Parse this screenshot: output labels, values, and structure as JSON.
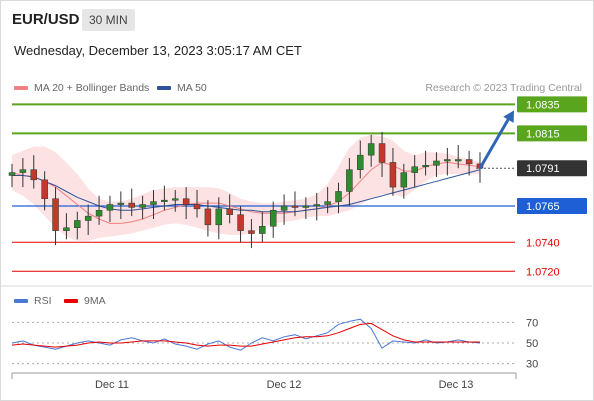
{
  "header": {
    "symbol": "EUR/USD",
    "timeframe": "30 MIN",
    "datetime": "Wednesday, December 13, 2023 3:05:17 AM CET"
  },
  "legend": {
    "items": [
      {
        "label": "MA 20 + Bollinger Bands",
        "color": "#f08080"
      },
      {
        "label": "MA 50",
        "color": "#2f5597"
      }
    ],
    "credit": "Research © 2023 Trading Central"
  },
  "rsi_legend": {
    "items": [
      {
        "label": "RSI",
        "color": "#4a78d6"
      },
      {
        "label": "9MA",
        "color": "#e60000"
      }
    ]
  },
  "chart_data": [
    {
      "type": "line",
      "title": "EUR/USD",
      "subtitle": "30 MIN",
      "ylim": [
        1.0714,
        1.0838
      ],
      "x_ticks": [
        "Dec 11",
        "Dec 12",
        "Dec 13"
      ],
      "levels": [
        {
          "value": 1.0835,
          "label": "1.0835",
          "kind": "resistance",
          "color": "#5aa51e",
          "label_bg": "#5aa51e"
        },
        {
          "value": 1.0815,
          "label": "1.0815",
          "kind": "resistance",
          "color": "#5aa51e",
          "label_bg": "#5aa51e"
        },
        {
          "value": 1.0791,
          "label": "1.0791",
          "kind": "current",
          "color": "#333333",
          "label_bg": "#333333"
        },
        {
          "value": 1.0765,
          "label": "1.0765",
          "kind": "pivot",
          "color": "#1e5fd6",
          "label_bg": "#1e5fd6"
        },
        {
          "value": 1.074,
          "label": "1.0740",
          "kind": "support",
          "color": "#e60000",
          "label_bg": ""
        },
        {
          "value": 1.072,
          "label": "1.0720",
          "kind": "support",
          "color": "#e60000",
          "label_bg": ""
        }
      ],
      "projection_target": 1.0835,
      "series": [
        {
          "name": "MA 20 + Bollinger Bands",
          "values": [
            1.0788,
            1.0786,
            1.0785,
            1.0782,
            1.0778,
            1.0772,
            1.0766,
            1.076,
            1.0756,
            1.0753,
            1.0753,
            1.0754,
            1.0756,
            1.0759,
            1.0762,
            1.0764,
            1.0766,
            1.0767,
            1.0767,
            1.0767,
            1.0765,
            1.0763,
            1.0761,
            1.076,
            1.076,
            1.076,
            1.0761,
            1.0762,
            1.0763,
            1.0765,
            1.0768,
            1.0774,
            1.0782,
            1.079,
            1.0795,
            1.0793,
            1.0789,
            1.0789,
            1.0792,
            1.0794,
            1.0795,
            1.0794,
            1.0793,
            1.0792
          ]
        },
        {
          "name": "MA 50",
          "values": [
            1.0786,
            1.0786,
            1.0785,
            1.0782,
            1.0779,
            1.0775,
            1.0771,
            1.0768,
            1.0765,
            1.0763,
            1.0762,
            1.0762,
            1.0763,
            1.0764,
            1.0765,
            1.0766,
            1.0766,
            1.0766,
            1.0765,
            1.0764,
            1.0763,
            1.0762,
            1.0762,
            1.0761,
            1.0761,
            1.0761,
            1.0761,
            1.0762,
            1.0763,
            1.0764,
            1.0765,
            1.0766,
            1.0768,
            1.077,
            1.0772,
            1.0774,
            1.0776,
            1.0778,
            1.078,
            1.0782,
            1.0784,
            1.0786,
            1.0788,
            1.079
          ]
        },
        {
          "name": "Bollinger upper",
          "values": [
            1.08,
            1.0803,
            1.0806,
            1.0806,
            1.0802,
            1.0795,
            1.0787,
            1.0777,
            1.077,
            1.0768,
            1.0768,
            1.077,
            1.0773,
            1.0776,
            1.0777,
            1.0778,
            1.0778,
            1.0778,
            1.0778,
            1.0777,
            1.0774,
            1.077,
            1.0768,
            1.0767,
            1.0767,
            1.0768,
            1.0769,
            1.077,
            1.0773,
            1.078,
            1.0792,
            1.0805,
            1.0812,
            1.0814,
            1.0813,
            1.081,
            1.0803,
            1.08,
            1.0802,
            1.0802,
            1.0801,
            1.0799,
            1.0797,
            1.0795
          ]
        },
        {
          "name": "Bollinger lower",
          "values": [
            1.0776,
            1.0772,
            1.0766,
            1.0758,
            1.075,
            1.0744,
            1.0741,
            1.0741,
            1.0743,
            1.0744,
            1.0745,
            1.0746,
            1.0748,
            1.075,
            1.0752,
            1.0753,
            1.0752,
            1.075,
            1.0748,
            1.0746,
            1.0745,
            1.0745,
            1.0746,
            1.075,
            1.0753,
            1.0754,
            1.0755,
            1.0757,
            1.0758,
            1.0758,
            1.076,
            1.0762,
            1.0766,
            1.077,
            1.0773,
            1.0773,
            1.0771,
            1.0776,
            1.0782,
            1.0786,
            1.0787,
            1.0787,
            1.0787,
            1.0787
          ]
        },
        {
          "name": "Price",
          "values": [
            1.0788,
            1.079,
            1.0783,
            1.077,
            1.0748,
            1.075,
            1.0755,
            1.0758,
            1.0762,
            1.0766,
            1.0767,
            1.0764,
            1.0766,
            1.0768,
            1.0769,
            1.077,
            1.0766,
            1.0763,
            1.0752,
            1.0763,
            1.0759,
            1.0748,
            1.0746,
            1.0751,
            1.0762,
            1.0765,
            1.0764,
            1.0765,
            1.0766,
            1.0768,
            1.0775,
            1.079,
            1.08,
            1.0808,
            1.0795,
            1.0778,
            1.0788,
            1.0792,
            1.0793,
            1.0796,
            1.0797,
            1.0797,
            1.0794,
            1.0791
          ]
        }
      ]
    },
    {
      "type": "line",
      "title": "RSI",
      "ylim": [
        20,
        80
      ],
      "y_ticks": [
        "70",
        "50",
        "30"
      ],
      "x_ticks": [
        "Dec 11",
        "Dec 12",
        "Dec 13"
      ],
      "series": [
        {
          "name": "RSI",
          "values": [
            50,
            52,
            48,
            46,
            44,
            47,
            50,
            52,
            50,
            48,
            53,
            55,
            52,
            50,
            54,
            49,
            47,
            44,
            49,
            52,
            46,
            43,
            50,
            55,
            52,
            56,
            58,
            54,
            57,
            60,
            68,
            71,
            73,
            64,
            45,
            52,
            51,
            50,
            53,
            50,
            51,
            53,
            51,
            50
          ]
        },
        {
          "name": "9MA",
          "values": [
            48,
            49,
            48,
            47,
            46,
            47,
            48,
            50,
            51,
            50,
            50,
            51,
            52,
            52,
            52,
            51,
            50,
            48,
            47,
            48,
            48,
            47,
            47,
            49,
            51,
            53,
            55,
            56,
            56,
            57,
            60,
            64,
            68,
            69,
            63,
            57,
            53,
            51,
            51,
            51,
            51,
            51,
            51,
            51
          ]
        }
      ]
    }
  ]
}
